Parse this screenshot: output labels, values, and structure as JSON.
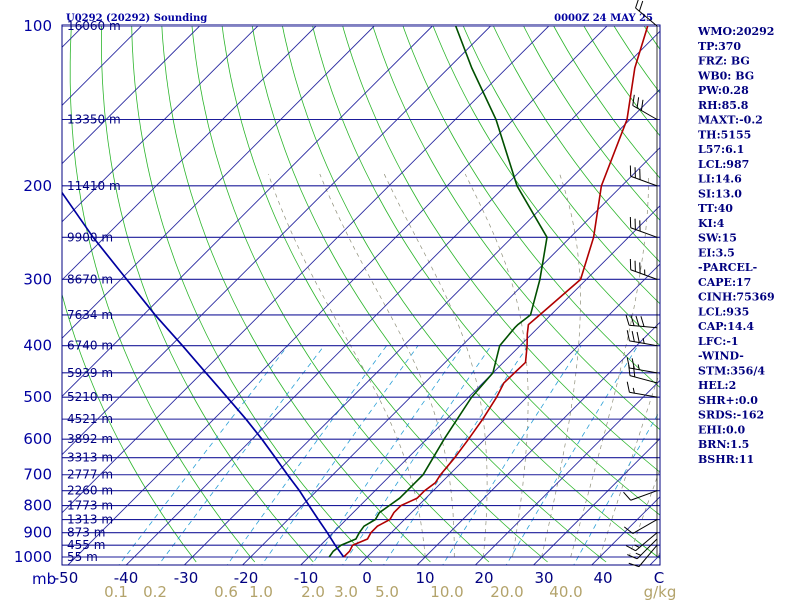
{
  "header": {
    "title_left": "U0292 (20292) Sounding",
    "title_right": "0000Z 24 MAY 25"
  },
  "chart_data": {
    "type": "skew-t log-p",
    "pressure_unit_label": "mb",
    "pressure_ticks": [
      100,
      200,
      300,
      400,
      500,
      600,
      700,
      800,
      900,
      1000
    ],
    "temperature_ticks": [
      -50,
      -40,
      -30,
      -20,
      -10,
      0,
      10,
      20,
      30,
      40,
      "C"
    ],
    "mixing_ratio_ticks": [
      "0.1",
      "0.2",
      "0.6",
      "1.0",
      "2.0",
      "3.0",
      "5.0",
      "10.0",
      "20.0",
      "40.0"
    ],
    "mixing_ratio_unit": "g/kg",
    "height_labels": [
      {
        "p": 100,
        "label": "16060 m"
      },
      {
        "p": 150,
        "label": "13350 m"
      },
      {
        "p": 200,
        "label": "11410 m"
      },
      {
        "p": 250,
        "label": "9900 m"
      },
      {
        "p": 300,
        "label": "8670 m"
      },
      {
        "p": 350,
        "label": "7634 m"
      },
      {
        "p": 400,
        "label": "6740 m"
      },
      {
        "p": 450,
        "label": "5939 m"
      },
      {
        "p": 500,
        "label": "5210 m"
      },
      {
        "p": 550,
        "label": "4521 m"
      },
      {
        "p": 600,
        "label": "3892 m"
      },
      {
        "p": 650,
        "label": "3313 m"
      },
      {
        "p": 700,
        "label": "2777 m"
      },
      {
        "p": 750,
        "label": "2260 m"
      },
      {
        "p": 800,
        "label": "1773 m"
      },
      {
        "p": 850,
        "label": "1313 m"
      },
      {
        "p": 900,
        "label": "873 m"
      },
      {
        "p": 950,
        "label": "455 m"
      },
      {
        "p": 1000,
        "label": "55 m"
      }
    ],
    "series": [
      {
        "name": "temperature",
        "color": "#b00000",
        "points": [
          [
            1000,
            -4
          ],
          [
            975,
            -4
          ],
          [
            950,
            -4.5
          ],
          [
            925,
            -3
          ],
          [
            900,
            -3.5
          ],
          [
            875,
            -3.5
          ],
          [
            850,
            -2.5
          ],
          [
            825,
            -3
          ],
          [
            800,
            -3
          ],
          [
            775,
            -1.5
          ],
          [
            750,
            -1.5
          ],
          [
            725,
            -1
          ],
          [
            700,
            -1.5
          ],
          [
            650,
            -2
          ],
          [
            600,
            -2.8
          ],
          [
            550,
            -3.8
          ],
          [
            500,
            -5.2
          ],
          [
            470,
            -6.4
          ],
          [
            430,
            -6.2
          ],
          [
            400,
            -8.8
          ],
          [
            380,
            -10.8
          ],
          [
            365,
            -12.2
          ],
          [
            350,
            -11.9
          ],
          [
            300,
            -11
          ],
          [
            250,
            -16
          ],
          [
            200,
            -23.5
          ],
          [
            150,
            -30.5
          ],
          [
            120,
            -38
          ],
          [
            100,
            -43
          ]
        ]
      },
      {
        "name": "dewpoint",
        "color": "#005000",
        "points": [
          [
            1000,
            -6.5
          ],
          [
            975,
            -6.8
          ],
          [
            950,
            -6.5
          ],
          [
            925,
            -5
          ],
          [
            900,
            -5.5
          ],
          [
            875,
            -5.8
          ],
          [
            850,
            -5
          ],
          [
            825,
            -5.5
          ],
          [
            800,
            -5
          ],
          [
            775,
            -4.5
          ],
          [
            750,
            -4.5
          ],
          [
            700,
            -4.5
          ],
          [
            600,
            -7
          ],
          [
            500,
            -9.5
          ],
          [
            450,
            -10
          ],
          [
            400,
            -13.5
          ],
          [
            370,
            -14
          ],
          [
            365,
            -14
          ],
          [
            350,
            -13.5
          ],
          [
            300,
            -18
          ],
          [
            250,
            -24
          ],
          [
            200,
            -38
          ],
          [
            150,
            -53
          ],
          [
            120,
            -66
          ],
          [
            100,
            -76
          ]
        ]
      },
      {
        "name": "parcel",
        "color": "#0000a0",
        "points": [
          [
            1000,
            -4
          ],
          [
            950,
            -7.5
          ],
          [
            900,
            -11
          ],
          [
            850,
            -14.8
          ],
          [
            800,
            -18.8
          ],
          [
            750,
            -23
          ],
          [
            700,
            -27.8
          ],
          [
            650,
            -32.8
          ],
          [
            600,
            -38.3
          ],
          [
            550,
            -44.5
          ],
          [
            500,
            -51.5
          ],
          [
            450,
            -59.3
          ],
          [
            400,
            -68
          ],
          [
            350,
            -78
          ],
          [
            300,
            -89
          ],
          [
            250,
            -102
          ],
          [
            200,
            -117
          ],
          [
            150,
            -135
          ],
          [
            100,
            -161
          ]
        ]
      }
    ],
    "wind_barbs": [
      {
        "p": 950,
        "dir": 220,
        "speed": 10
      },
      {
        "p": 925,
        "dir": 225,
        "speed": 15
      },
      {
        "p": 900,
        "dir": 230,
        "speed": 15
      },
      {
        "p": 850,
        "dir": 240,
        "speed": 10
      },
      {
        "p": 750,
        "dir": 250,
        "speed": 10
      },
      {
        "p": 500,
        "dir": 280,
        "speed": 15
      },
      {
        "p": 470,
        "dir": 285,
        "speed": 20
      },
      {
        "p": 450,
        "dir": 280,
        "speed": 25
      },
      {
        "p": 400,
        "dir": 280,
        "speed": 35
      },
      {
        "p": 370,
        "dir": 275,
        "speed": 40
      },
      {
        "p": 300,
        "dir": 290,
        "speed": 35
      },
      {
        "p": 250,
        "dir": 290,
        "speed": 30
      },
      {
        "p": 200,
        "dir": 290,
        "speed": 30
      },
      {
        "p": 150,
        "dir": 300,
        "speed": 30
      },
      {
        "p": 100,
        "dir": 310,
        "speed": 20
      }
    ]
  },
  "indices": [
    "WMO:20292",
    "TP:370",
    "FRZ: BG",
    "WB0: BG",
    "PW:0.28",
    "RH:85.8",
    "MAXT:-0.2",
    "TH:5155",
    "L57:6.1",
    "LCL:987",
    "LI:14.6",
    "SI:13.0",
    "TT:40",
    "KI:4",
    "SW:15",
    "EI:3.5",
    "-PARCEL-",
    "CAPE:17",
    "CINH:75369",
    "LCL:935",
    "CAP:14.4",
    "LFC:-1",
    "-WIND-",
    "STM:356/4",
    "HEL:2",
    "SHR+:0.0",
    "SRDS:-162",
    "EHI:0.0",
    "BRN:1.5",
    "BSHR:11"
  ]
}
